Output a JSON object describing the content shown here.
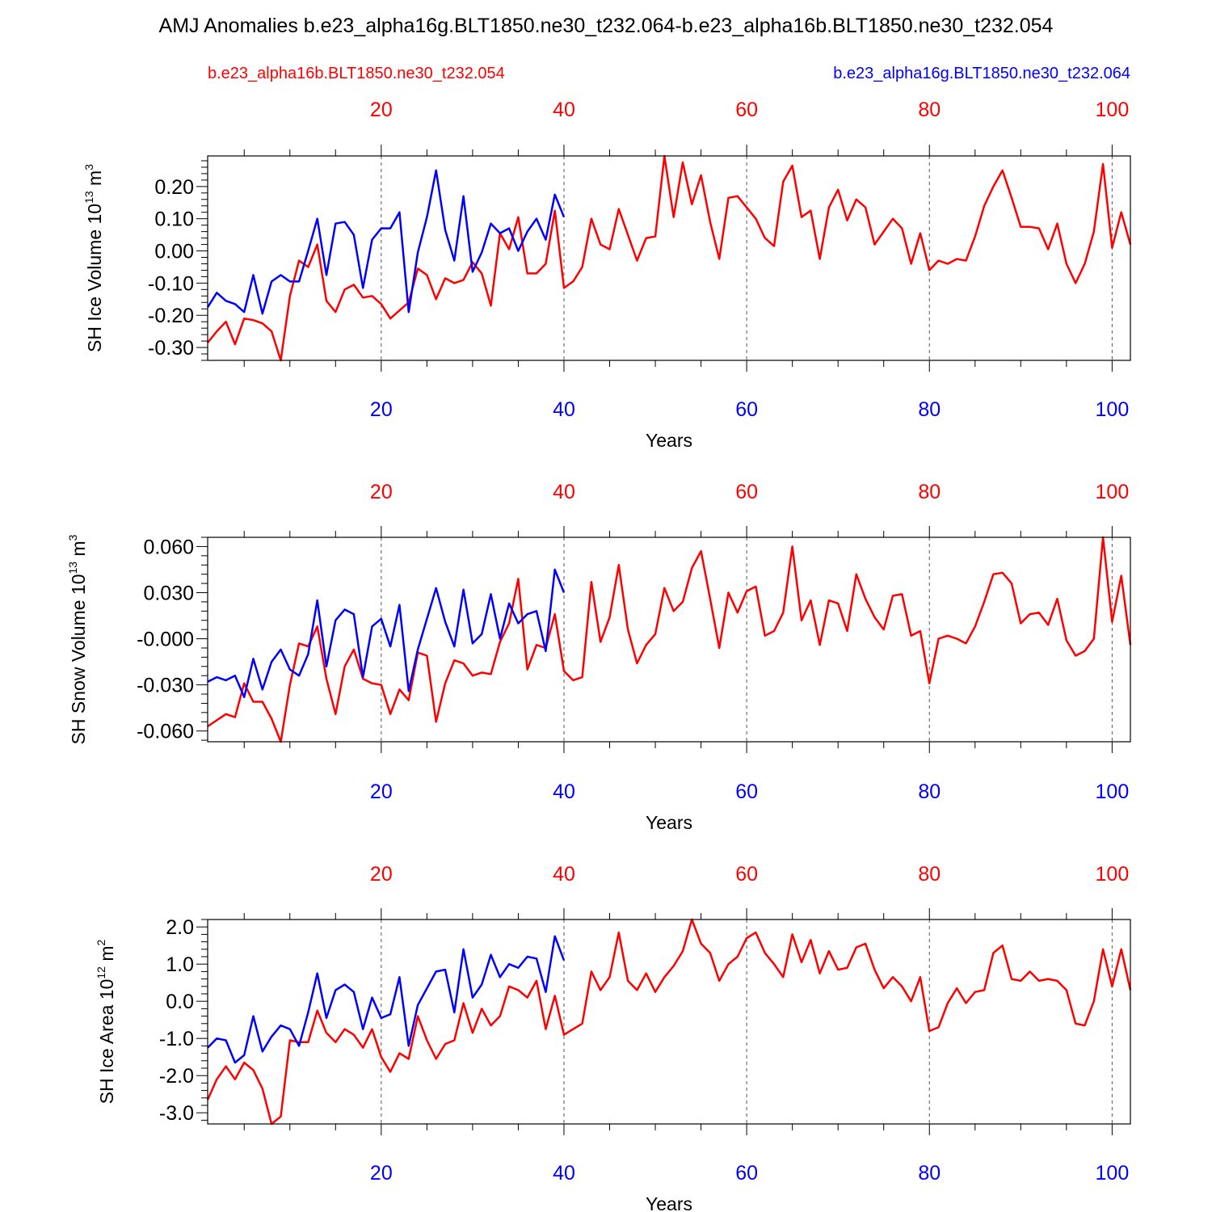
{
  "title": "AMJ Anomalies b.e23_alpha16g.BLT1850.ne30_t232.064-b.e23_alpha16b.BLT1850.ne30_t232.054",
  "legend": {
    "red": {
      "label": "b.e23_alpha16b.BLT1850.ne30_t232.054",
      "color": "#ff0000"
    },
    "blue": {
      "label": "b.e23_alpha16g.BLT1850.ne30_t232.064",
      "color": "#0000ff"
    }
  },
  "chart_data": [
    {
      "type": "line",
      "ylabel": "SH Ice Volume 10",
      "ylabel_exp": "13",
      "ylabel_unit": " m",
      "ylabel_unit_exp": "3",
      "xlabel": "Years",
      "xlim": [
        1,
        102
      ],
      "ylim": [
        -0.34,
        0.295
      ],
      "yticks": [
        -0.3,
        -0.2,
        -0.1,
        0.0,
        0.1,
        0.2
      ],
      "yticklabels": [
        "-0.30",
        "-0.20",
        "-0.10",
        "0.00",
        "0.10",
        "0.20"
      ],
      "xticks": [
        20,
        40,
        60,
        80,
        100
      ],
      "xticklabels": [
        "20",
        "40",
        "60",
        "80",
        "100"
      ],
      "grid": "vertical dashed at major x ticks",
      "series": [
        {
          "color": "#ff0000",
          "x_start": 1,
          "values": [
            -0.285,
            -0.25,
            -0.22,
            -0.29,
            -0.21,
            -0.215,
            -0.225,
            -0.25,
            -0.34,
            -0.14,
            -0.03,
            -0.05,
            0.02,
            -0.155,
            -0.19,
            -0.12,
            -0.105,
            -0.145,
            -0.14,
            -0.165,
            -0.21,
            -0.185,
            -0.16,
            -0.055,
            -0.075,
            -0.15,
            -0.085,
            -0.1,
            -0.09,
            -0.035,
            -0.07,
            -0.17,
            0.055,
            0.005,
            0.105,
            -0.07,
            -0.07,
            -0.04,
            0.125,
            -0.115,
            -0.095,
            -0.05,
            0.1,
            0.02,
            0.005,
            0.13,
            0.05,
            -0.03,
            0.04,
            0.045,
            0.295,
            0.105,
            0.275,
            0.145,
            0.235,
            0.09,
            -0.025,
            0.165,
            0.17,
            0.135,
            0.1,
            0.04,
            0.015,
            0.215,
            0.265,
            0.105,
            0.125,
            -0.025,
            0.135,
            0.19,
            0.095,
            0.16,
            0.135,
            0.02,
            0.06,
            0.1,
            0.07,
            -0.04,
            0.055,
            -0.06,
            -0.03,
            -0.04,
            -0.025,
            -0.03,
            0.045,
            0.14,
            0.2,
            0.25,
            0.165,
            0.075,
            0.075,
            0.07,
            0.005,
            0.085,
            -0.04,
            -0.1,
            -0.04,
            0.06,
            0.27,
            0.01,
            0.12,
            0.02
          ]
        },
        {
          "color": "#0000ff",
          "x_start": 1,
          "values": [
            -0.175,
            -0.13,
            -0.155,
            -0.165,
            -0.19,
            -0.075,
            -0.195,
            -0.095,
            -0.075,
            -0.095,
            -0.095,
            0.0,
            0.1,
            -0.075,
            0.085,
            0.09,
            0.05,
            -0.115,
            0.035,
            0.07,
            0.07,
            0.12,
            -0.19,
            -0.005,
            0.105,
            0.25,
            0.065,
            -0.03,
            0.17,
            -0.065,
            -0.005,
            0.085,
            0.055,
            0.07,
            0.0,
            0.06,
            0.1,
            0.035,
            0.175,
            0.105
          ]
        }
      ]
    },
    {
      "type": "line",
      "ylabel": "SH Snow Volume 10",
      "ylabel_exp": "13",
      "ylabel_unit": " m",
      "ylabel_unit_exp": "3",
      "xlabel": "Years",
      "xlim": [
        1,
        102
      ],
      "ylim": [
        -0.067,
        0.066
      ],
      "yticks": [
        -0.06,
        -0.03,
        0.0,
        0.03,
        0.06
      ],
      "yticklabels": [
        "-0.060",
        "-0.030",
        "-0.000",
        "0.030",
        "0.060"
      ],
      "xticks": [
        20,
        40,
        60,
        80,
        100
      ],
      "xticklabels": [
        "20",
        "40",
        "60",
        "80",
        "100"
      ],
      "grid": "vertical dashed at major x ticks",
      "series": [
        {
          "color": "#ff0000",
          "x_start": 1,
          "values": [
            -0.057,
            -0.053,
            -0.049,
            -0.051,
            -0.029,
            -0.041,
            -0.041,
            -0.052,
            -0.067,
            -0.03,
            -0.003,
            -0.005,
            0.008,
            -0.026,
            -0.049,
            -0.018,
            -0.007,
            -0.026,
            -0.029,
            -0.03,
            -0.049,
            -0.033,
            -0.04,
            -0.009,
            -0.011,
            -0.054,
            -0.029,
            -0.014,
            -0.016,
            -0.024,
            -0.022,
            -0.023,
            -0.002,
            0.01,
            0.039,
            -0.02,
            -0.004,
            -0.006,
            0.016,
            -0.021,
            -0.027,
            -0.025,
            0.037,
            -0.002,
            0.014,
            0.048,
            0.006,
            -0.016,
            -0.004,
            0.003,
            0.033,
            0.018,
            0.024,
            0.046,
            0.057,
            0.026,
            -0.006,
            0.03,
            0.017,
            0.031,
            0.034,
            0.002,
            0.005,
            0.017,
            0.06,
            0.012,
            0.025,
            -0.004,
            0.025,
            0.023,
            0.005,
            0.042,
            0.026,
            0.014,
            0.006,
            0.028,
            0.029,
            0.002,
            0.005,
            -0.029,
            0.0,
            0.002,
            0.0,
            -0.003,
            0.008,
            0.024,
            0.042,
            0.043,
            0.036,
            0.01,
            0.016,
            0.017,
            0.009,
            0.026,
            -0.001,
            -0.011,
            -0.008,
            0.0,
            0.066,
            0.011,
            0.041,
            -0.004
          ]
        },
        {
          "color": "#0000ff",
          "x_start": 1,
          "values": [
            -0.028,
            -0.025,
            -0.027,
            -0.024,
            -0.038,
            -0.013,
            -0.033,
            -0.015,
            -0.007,
            -0.02,
            -0.024,
            -0.01,
            0.025,
            -0.018,
            0.012,
            0.019,
            0.016,
            -0.025,
            0.008,
            0.013,
            -0.005,
            0.022,
            -0.034,
            -0.007,
            0.013,
            0.033,
            0.011,
            -0.005,
            0.032,
            -0.003,
            0.003,
            0.029,
            0.0,
            0.023,
            0.01,
            0.016,
            0.018,
            -0.008,
            0.045,
            0.03
          ]
        }
      ]
    },
    {
      "type": "line",
      "ylabel": "SH Ice Area 10",
      "ylabel_exp": "12",
      "ylabel_unit": " m",
      "ylabel_unit_exp": "2",
      "xlabel": "Years",
      "xlim": [
        1,
        102
      ],
      "ylim": [
        -3.3,
        2.2
      ],
      "yticks": [
        -3.0,
        -2.0,
        -1.0,
        0.0,
        1.0,
        2.0
      ],
      "yticklabels": [
        "-3.0",
        "-2.0",
        "-1.0",
        "0.0",
        "1.0",
        "2.0"
      ],
      "xticks": [
        20,
        40,
        60,
        80,
        100
      ],
      "xticklabels": [
        "20",
        "40",
        "60",
        "80",
        "100"
      ],
      "grid": "vertical dashed at major x ticks",
      "series": [
        {
          "color": "#ff0000",
          "x_start": 1,
          "values": [
            -2.65,
            -2.1,
            -1.75,
            -2.1,
            -1.65,
            -1.85,
            -2.35,
            -3.3,
            -3.1,
            -1.05,
            -1.1,
            -1.1,
            -0.25,
            -0.85,
            -1.1,
            -0.75,
            -0.9,
            -1.25,
            -0.75,
            -1.5,
            -1.9,
            -1.4,
            -1.55,
            -0.4,
            -1.05,
            -1.55,
            -1.15,
            -1.05,
            -0.05,
            -0.85,
            -0.2,
            -0.65,
            -0.4,
            0.4,
            0.3,
            0.1,
            0.55,
            -0.75,
            0.15,
            -0.9,
            -0.75,
            -0.6,
            0.8,
            0.3,
            0.65,
            1.85,
            0.55,
            0.3,
            0.75,
            0.25,
            0.65,
            0.95,
            1.35,
            2.2,
            1.55,
            1.3,
            0.55,
            1.0,
            1.2,
            1.7,
            1.85,
            1.3,
            1.0,
            0.65,
            1.8,
            1.05,
            1.65,
            0.75,
            1.35,
            0.85,
            0.9,
            1.45,
            1.55,
            0.85,
            0.35,
            0.65,
            0.4,
            0.0,
            0.65,
            -0.8,
            -0.7,
            -0.05,
            0.35,
            -0.05,
            0.25,
            0.3,
            1.3,
            1.5,
            0.6,
            0.55,
            0.8,
            0.55,
            0.6,
            0.55,
            0.3,
            -0.6,
            -0.65,
            0.0,
            1.4,
            0.4,
            1.4,
            0.3
          ]
        },
        {
          "color": "#0000ff",
          "x_start": 1,
          "values": [
            -1.25,
            -1.0,
            -1.05,
            -1.65,
            -1.45,
            -0.4,
            -1.35,
            -0.95,
            -0.65,
            -0.75,
            -1.2,
            -0.3,
            0.75,
            -0.45,
            0.3,
            0.45,
            0.25,
            -0.75,
            0.1,
            -0.45,
            -0.35,
            0.65,
            -1.2,
            -0.1,
            0.35,
            0.8,
            0.85,
            -0.3,
            1.4,
            0.1,
            0.45,
            1.25,
            0.65,
            1.0,
            0.9,
            1.2,
            1.15,
            0.25,
            1.75,
            1.1
          ]
        }
      ]
    }
  ]
}
